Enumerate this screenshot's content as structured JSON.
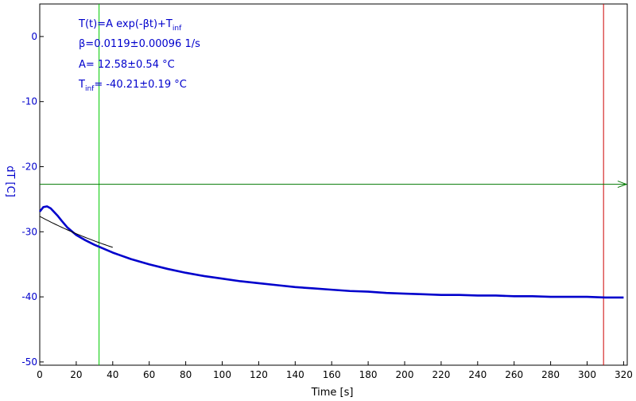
{
  "chart_data": {
    "type": "line",
    "xlabel": "Time [s]",
    "ylabel": "dT [C]",
    "xlim": [
      0,
      322
    ],
    "ylim": [
      -50.5,
      5
    ],
    "x_ticks": [
      0,
      20,
      40,
      60,
      80,
      100,
      120,
      140,
      160,
      180,
      200,
      220,
      240,
      260,
      280,
      300,
      320
    ],
    "y_ticks": [
      0,
      -10,
      -20,
      -30,
      -40,
      -50
    ],
    "grid": false,
    "series": [
      {
        "role": "measured",
        "color": "#0000cc",
        "x": [
          0,
          2,
          4,
          6,
          8,
          10,
          12,
          15,
          20,
          25,
          30,
          35,
          40,
          45,
          50,
          60,
          70,
          80,
          90,
          100,
          110,
          120,
          130,
          140,
          150,
          160,
          170,
          180,
          190,
          200,
          210,
          220,
          230,
          240,
          250,
          260,
          270,
          280,
          290,
          300,
          310,
          320
        ],
        "y": [
          -26.9,
          -26.2,
          -26.1,
          -26.4,
          -27.0,
          -27.6,
          -28.3,
          -29.3,
          -30.5,
          -31.3,
          -32.0,
          -32.6,
          -33.2,
          -33.7,
          -34.2,
          -35.0,
          -35.7,
          -36.3,
          -36.8,
          -37.2,
          -37.6,
          -37.9,
          -38.2,
          -38.5,
          -38.7,
          -38.9,
          -39.1,
          -39.2,
          -39.4,
          -39.5,
          -39.6,
          -39.7,
          -39.7,
          -39.8,
          -39.8,
          -39.9,
          -39.9,
          -40.0,
          -40.0,
          -40.0,
          -40.1,
          -40.1
        ]
      },
      {
        "role": "fit",
        "color": "#000000",
        "x_start": 0,
        "x_end": 40,
        "A": 12.58,
        "beta": 0.0119,
        "t_inf": -40.21
      }
    ],
    "cursors": {
      "vertical_green_x": 32.5,
      "vertical_red_x": 309,
      "horizontal_green_y": -22.7
    },
    "colors": {
      "axis": "#000000",
      "y_axis_text": "#0000cc",
      "green_cursor": "#00cc00",
      "horizontal_cursor": "#007700",
      "red_cursor": "#cc0000"
    },
    "annotations": {
      "line1_main": "T(t)=A exp(-βt)+T",
      "line1_sub": "inf",
      "line2": "β=0.0119±0.00096 1/s",
      "line3": "A= 12.58±0.54 °C",
      "line4_main": "T",
      "line4_sub": "inf",
      "line4_rest": "= -40.21±0.19 °C"
    }
  }
}
